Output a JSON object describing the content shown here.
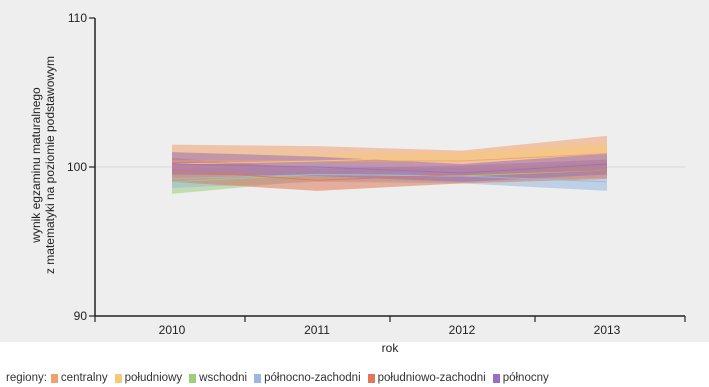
{
  "chart_data": {
    "type": "area",
    "xlabel": "rok",
    "ylabel_lines": [
      "wynik egzaminu maturalnego",
      "z matematyki na poziomie podstawowym"
    ],
    "x": [
      2010,
      2011,
      2012,
      2013
    ],
    "x_tick_labels": [
      "2010",
      "2011",
      "2012",
      "2013"
    ],
    "ylim": [
      90,
      110
    ],
    "y_ticks": [
      90,
      100,
      110
    ],
    "y_tick_labels": [
      "90",
      "100",
      "110"
    ],
    "grid": "horizontal",
    "legend": {
      "title": "regiony:",
      "placement": "bottom"
    },
    "series": [
      {
        "name": "centralny",
        "color": "#f0a070",
        "lower": [
          99.3,
          99.5,
          99.8,
          99.7
        ],
        "upper": [
          101.5,
          101.4,
          101.1,
          102.1
        ],
        "mean": [
          100.4,
          100.4,
          100.4,
          100.9
        ]
      },
      {
        "name": "południowy",
        "color": "#f8c878",
        "lower": [
          99.4,
          99.9,
          100.3,
          100.5
        ],
        "upper": [
          101.0,
          100.9,
          101.0,
          101.6
        ],
        "mean": [
          100.2,
          100.4,
          100.7,
          101.1
        ]
      },
      {
        "name": "wschodni",
        "color": "#9ccf7c",
        "lower": [
          98.2,
          99.1,
          99.0,
          99.3
        ],
        "upper": [
          99.8,
          100.0,
          99.9,
          100.3
        ],
        "mean": [
          99.0,
          99.5,
          99.4,
          99.8
        ]
      },
      {
        "name": "północno-zachodni",
        "color": "#98b8e0",
        "lower": [
          98.6,
          99.0,
          98.9,
          98.4
        ],
        "upper": [
          99.9,
          100.1,
          99.9,
          99.7
        ],
        "mean": [
          99.2,
          99.5,
          99.4,
          99.0
        ]
      },
      {
        "name": "południowo-zachodni",
        "color": "#e07858",
        "lower": [
          99.0,
          98.4,
          98.9,
          99.2
        ],
        "upper": [
          100.6,
          99.9,
          100.1,
          100.5
        ],
        "mean": [
          99.8,
          99.1,
          99.5,
          99.8
        ]
      },
      {
        "name": "północny",
        "color": "#9870c0",
        "lower": [
          99.5,
          99.4,
          99.0,
          99.5
        ],
        "upper": [
          101.0,
          100.7,
          100.2,
          100.9
        ],
        "mean": [
          100.2,
          100.0,
          99.6,
          100.2
        ]
      }
    ]
  }
}
